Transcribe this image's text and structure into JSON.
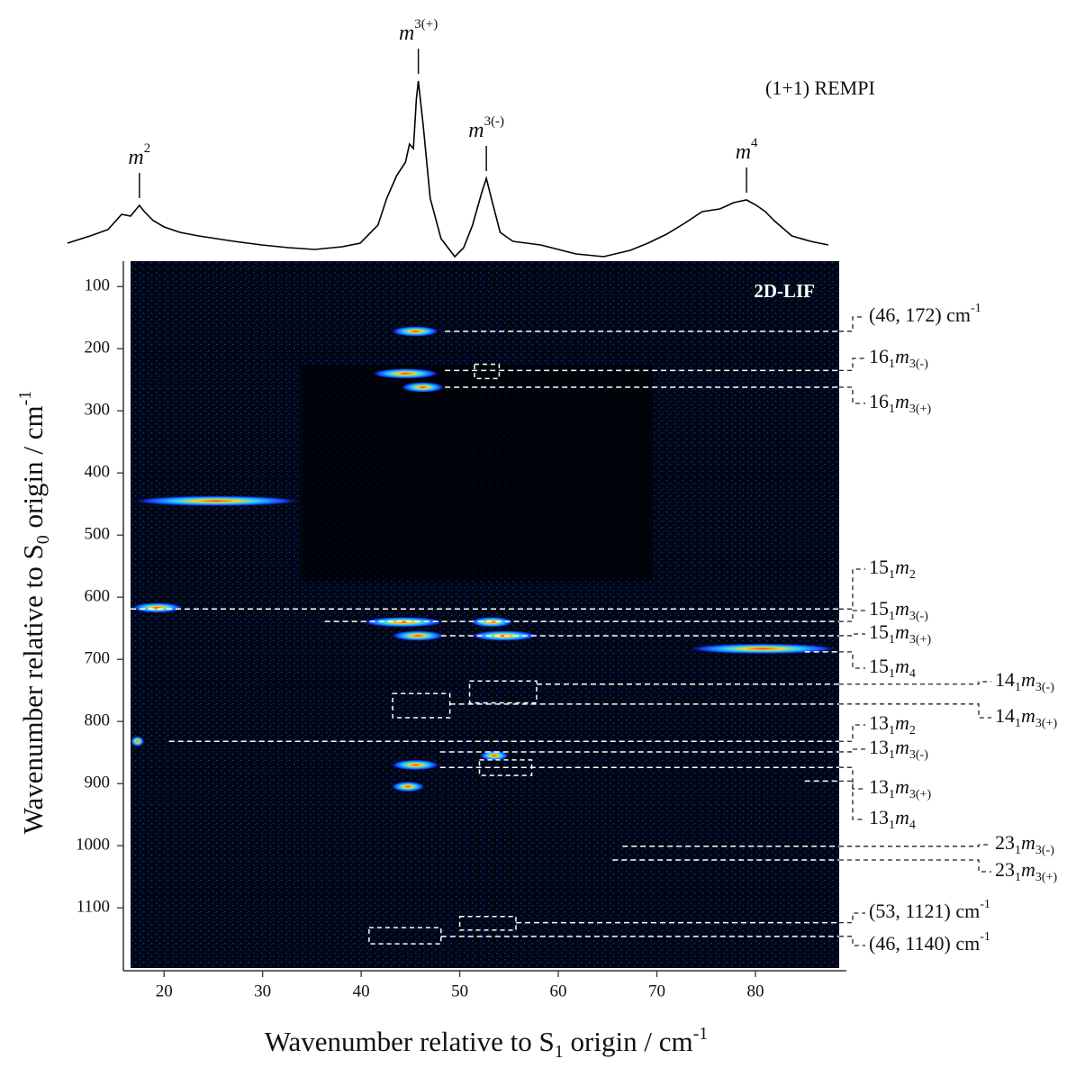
{
  "chart_data": {
    "type": "spectrum-map",
    "trace_title": "(1+1) REMPI",
    "map_title": "2D-LIF",
    "x_label": {
      "pre": "Wavenumber relative to S",
      "sub": "1",
      "post": " origin / cm",
      "sup": "-1"
    },
    "y_label": {
      "pre": "Wavenumber relative to S",
      "sub": "0",
      "post": " origin / cm",
      "sup": "-1"
    },
    "xlim": [
      16.6,
      88.5
    ],
    "xticks": [
      20,
      30,
      40,
      50,
      60,
      70,
      80
    ],
    "ylim": [
      59,
      1197
    ],
    "yticks": [
      100,
      200,
      300,
      400,
      500,
      600,
      700,
      800,
      900,
      1000,
      1100
    ],
    "trace": {
      "color": "#000000",
      "x": [
        10.2,
        12.5,
        14.3,
        15.7,
        16.6,
        17.5,
        18.0,
        18.9,
        20.0,
        21.6,
        23.5,
        25.3,
        27.1,
        29.9,
        32.6,
        35.3,
        38.1,
        39.9,
        41.7,
        42.6,
        43.6,
        44.5,
        44.9,
        45.3,
        45.6,
        45.8,
        46.3,
        47.0,
        48.1,
        49.5,
        50.4,
        51.3,
        52.2,
        52.7,
        53.2,
        54.1,
        55.4,
        58.2,
        61.8,
        64.6,
        67.3,
        69.1,
        71.0,
        72.8,
        74.6,
        76.4,
        77.8,
        79.1,
        80.1,
        81.0,
        81.9,
        83.7,
        85.6,
        87.4
      ],
      "values": [
        20,
        28,
        35,
        52,
        50,
        62,
        55,
        45,
        38,
        32,
        28,
        25,
        22,
        18,
        15,
        13,
        16,
        20,
        40,
        70,
        95,
        110,
        130,
        125,
        180,
        200,
        150,
        70,
        25,
        5,
        15,
        40,
        75,
        92,
        70,
        32,
        22,
        18,
        8,
        5,
        12,
        20,
        30,
        42,
        55,
        58,
        65,
        68,
        62,
        55,
        45,
        28,
        22,
        18
      ]
    },
    "peaks": [
      {
        "x": 17.5,
        "text": "m",
        "sup": "2"
      },
      {
        "x": 45.8,
        "text": "m",
        "sup": "3(+)"
      },
      {
        "x": 52.7,
        "text": "m",
        "sup": "3(-)"
      },
      {
        "x": 79.1,
        "text": "m",
        "sup": "4"
      }
    ],
    "streaks": [
      {
        "x": [
          16.6,
          22
        ],
        "y": 617
      },
      {
        "x": [
          40,
          48.5
        ],
        "y": 640
      },
      {
        "x": [
          43,
          48.5
        ],
        "y": 662
      },
      {
        "x": [
          51,
          55.5
        ],
        "y": 640
      },
      {
        "x": [
          51,
          58
        ],
        "y": 662
      },
      {
        "x": [
          73,
          88.5
        ],
        "y": 683
      },
      {
        "x": [
          43,
          48
        ],
        "y": 172
      },
      {
        "x": [
          41,
          48
        ],
        "y": 240
      },
      {
        "x": [
          44,
          48.5
        ],
        "y": 262
      },
      {
        "x": [
          16.6,
          34
        ],
        "y": 445
      },
      {
        "x": [
          16.6,
          18
        ],
        "y": 832
      },
      {
        "x": [
          43,
          48
        ],
        "y": 870
      },
      {
        "x": [
          43,
          46.5
        ],
        "y": 905
      },
      {
        "x": [
          52,
          55
        ],
        "y": 855
      }
    ],
    "boxes": [
      {
        "x": [
          51.5,
          54.0
        ],
        "y": [
          225,
          248
        ]
      },
      {
        "x": [
          51.0,
          57.8
        ],
        "y": [
          735,
          770
        ]
      },
      {
        "x": [
          43.2,
          49.0
        ],
        "y": [
          755,
          794
        ]
      },
      {
        "x": [
          52.0,
          57.3
        ],
        "y": [
          862,
          887
        ]
      },
      {
        "x": [
          50.0,
          55.7
        ],
        "y": [
          1114,
          1136
        ]
      },
      {
        "x": [
          40.8,
          48.1
        ],
        "y": [
          1132,
          1158
        ]
      }
    ],
    "annotations": [
      {
        "x": 48.5,
        "y": 172,
        "label": {
          "text": "(46, 172) cm",
          "sup": "-1"
        }
      },
      {
        "x": 48.5,
        "y": 235,
        "label": {
          "n": "16",
          "nsub": "1",
          "m": "m",
          "msub": "3(-)"
        }
      },
      {
        "x": 48.5,
        "y": 262,
        "label": {
          "n": "16",
          "nsub": "1",
          "m": "m",
          "msub": "3(+)"
        }
      },
      {
        "x": 16.6,
        "y": 619,
        "label": {
          "n": "15",
          "nsub": "1",
          "m": "m",
          "msub": "2"
        }
      },
      {
        "x": 36.3,
        "y": 639,
        "label": {
          "n": "15",
          "nsub": "1",
          "m": "m",
          "msub": "3(-)"
        }
      },
      {
        "x": 48.1,
        "y": 662,
        "label": {
          "n": "15",
          "nsub": "1",
          "m": "m",
          "msub": "3(+)"
        }
      },
      {
        "x": 85,
        "y": 688,
        "label": {
          "n": "15",
          "nsub": "1",
          "m": "m",
          "msub": "4"
        }
      },
      {
        "x": 57.8,
        "y": 740,
        "label": {
          "n": "14",
          "nsub": "1",
          "m": "m",
          "msub": "3(-)"
        }
      },
      {
        "x": 49.0,
        "y": 772,
        "label": {
          "n": "14",
          "nsub": "1",
          "m": "m",
          "msub": "3(+)"
        }
      },
      {
        "x": 20.5,
        "y": 832,
        "label": {
          "n": "13",
          "nsub": "1",
          "m": "m",
          "msub": "2"
        }
      },
      {
        "x": 48,
        "y": 849,
        "label": {
          "n": "13",
          "nsub": "1",
          "m": "m",
          "msub": "3(-)"
        }
      },
      {
        "x": 48,
        "y": 874,
        "label": {
          "n": "13",
          "nsub": "1",
          "m": "m",
          "msub": "3(+)"
        }
      },
      {
        "x": 85,
        "y": 896,
        "label": {
          "n": "13",
          "nsub": "1",
          "m": "m",
          "msub": "4"
        }
      },
      {
        "x": 66.5,
        "y": 1001,
        "label": {
          "n": "23",
          "nsub": "1",
          "m": "m",
          "msub": "3(-)"
        }
      },
      {
        "x": 65.5,
        "y": 1023,
        "label": {
          "n": "23",
          "nsub": "1",
          "m": "m",
          "msub": "3(+)"
        }
      },
      {
        "x": 55.7,
        "y": 1124,
        "label": {
          "text": "(53, 1121) cm",
          "sup": "-1"
        }
      },
      {
        "x": 48.1,
        "y": 1146,
        "label": {
          "text": "(46, 1140) cm",
          "sup": "-1"
        }
      }
    ]
  }
}
